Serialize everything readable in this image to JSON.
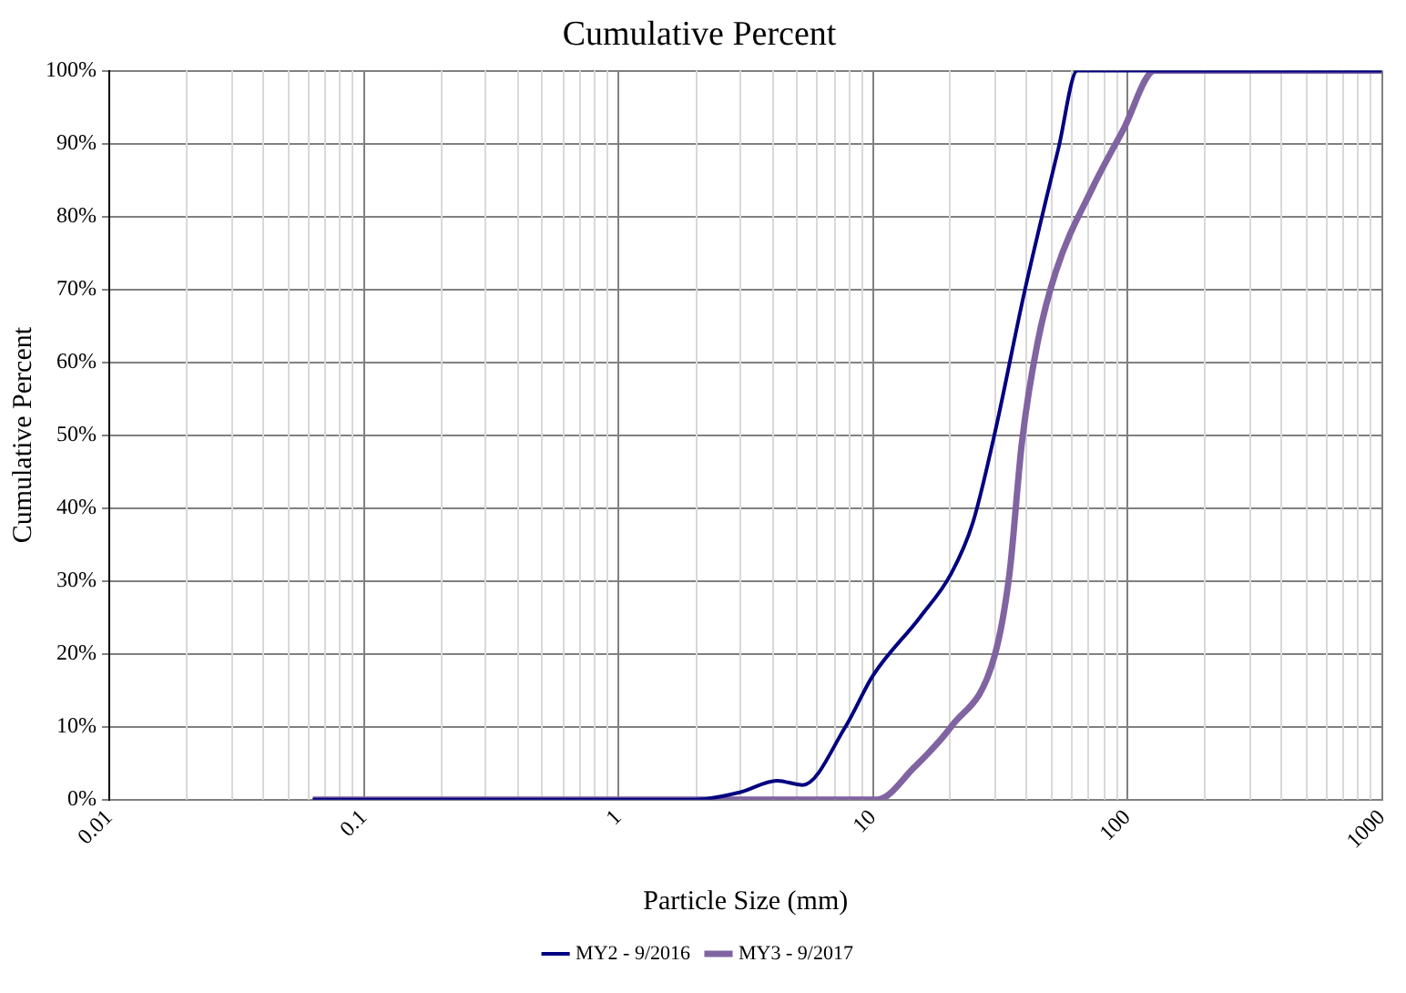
{
  "chart_data": {
    "type": "line",
    "title": "Cumulative Percent",
    "xlabel": "Particle Size (mm)",
    "ylabel": "Cumulative Percent",
    "log": "x",
    "xlim": [
      0.01,
      1000
    ],
    "xticks": [
      0.01,
      0.1,
      1,
      10,
      100,
      1000
    ],
    "ylim": [
      0,
      100
    ],
    "yticks": [
      {
        "value": 0,
        "label": "0%"
      },
      {
        "value": 10,
        "label": "10%"
      },
      {
        "value": 20,
        "label": "20%"
      },
      {
        "value": 30,
        "label": "30%"
      },
      {
        "value": 40,
        "label": "40%"
      },
      {
        "value": 50,
        "label": "50%"
      },
      {
        "value": 60,
        "label": "60%"
      },
      {
        "value": 70,
        "label": "70%"
      },
      {
        "value": 80,
        "label": "80%"
      },
      {
        "value": 90,
        "label": "90%"
      },
      {
        "value": 100,
        "label": "100%"
      }
    ],
    "grid": true,
    "legend": "bottom",
    "marker": "none",
    "line_style": "solid",
    "series": [
      {
        "name": "MY2 - 9/2016",
        "color": "#000080",
        "x": [
          0.063,
          2,
          3,
          4.2,
          5.3,
          7.8,
          10,
          15.3,
          20.3,
          24.7,
          30,
          39.6,
          53.7,
          63.5,
          100,
          1000
        ],
        "values": [
          0,
          0,
          1,
          2.6,
          2,
          10,
          17,
          25,
          31,
          38,
          50,
          70,
          89.5,
          100,
          100,
          100
        ]
      },
      {
        "name": "MY3 - 9/2017",
        "color": "#8064a2",
        "x": [
          0.063,
          10.4,
          14.5,
          20.3,
          30,
          34.4,
          38.5,
          44.3,
          52.4,
          73.1,
          96.6,
          128,
          1000
        ],
        "values": [
          0,
          0,
          4.4,
          10,
          19.6,
          31,
          49,
          62.6,
          72.5,
          84,
          92,
          100,
          100
        ]
      }
    ]
  }
}
